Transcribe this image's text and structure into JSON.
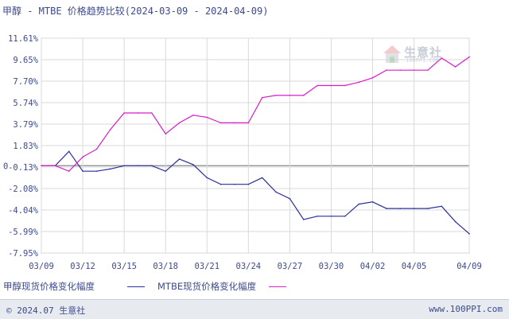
{
  "title": "甲醇 - MTBE 价格趋势比较(2024-03-09 - 2024-04-09)",
  "watermark": {
    "text": "生意社",
    "sub": "100PPI.COM"
  },
  "legend": {
    "series1": "甲醇现货价格变化幅度",
    "series2": "MTBE现货价格变化幅度"
  },
  "footer": {
    "copyright": "© 2024.07 生意社",
    "site": "www.100PPI.com"
  },
  "colors": {
    "series1": "#2b2f9a",
    "series2": "#d81ec9",
    "axis_text": "#3c4a8c",
    "grid": "#d9d9d9"
  },
  "chart_data": {
    "type": "line",
    "title": "甲醇 - MTBE 价格趋势比较(2024-03-09 - 2024-04-09)",
    "x": [
      "03/09",
      "03/10",
      "03/11",
      "03/12",
      "03/13",
      "03/14",
      "03/15",
      "03/16",
      "03/17",
      "03/18",
      "03/19",
      "03/20",
      "03/21",
      "03/22",
      "03/23",
      "03/24",
      "03/25",
      "03/26",
      "03/27",
      "03/28",
      "03/29",
      "03/30",
      "03/31",
      "04/01",
      "04/02",
      "04/03",
      "04/04",
      "04/05",
      "04/06",
      "04/07",
      "04/08",
      "04/09"
    ],
    "x_tick_labels": [
      "03/09",
      "03/12",
      "03/15",
      "03/18",
      "03/21",
      "03/24",
      "03/27",
      "03/30",
      "04/02",
      "04/05",
      "04/09"
    ],
    "y_tick_labels": [
      "11.61%",
      "9.65%",
      "7.70%",
      "5.74%",
      "3.79%",
      "1.83%",
      "-0.13%",
      "-2.08%",
      "-4.04%",
      "-5.99%",
      "-7.95%"
    ],
    "y_tick_values": [
      11.61,
      9.65,
      7.7,
      5.74,
      3.79,
      1.83,
      -0.13,
      -2.08,
      -4.04,
      -5.99,
      -7.95
    ],
    "zero_label": "0",
    "ylim": [
      -7.95,
      11.61
    ],
    "grid": true,
    "series": [
      {
        "name": "甲醇现货价格变化幅度",
        "color": "#2b2f9a",
        "values": [
          0.0,
          0.0,
          1.3,
          -0.5,
          -0.5,
          -0.3,
          0.0,
          0.0,
          0.0,
          -0.5,
          0.6,
          0.1,
          -1.1,
          -1.7,
          -1.7,
          -1.7,
          -1.1,
          -2.4,
          -3.0,
          -4.9,
          -4.6,
          -4.6,
          -4.6,
          -3.5,
          -3.3,
          -3.9,
          -3.9,
          -3.9,
          -3.9,
          -3.7,
          -5.1,
          -6.2
        ]
      },
      {
        "name": "MTBE现货价格变化幅度",
        "color": "#d81ec9",
        "values": [
          0.0,
          0.0,
          -0.5,
          0.8,
          1.5,
          3.3,
          4.8,
          4.8,
          4.8,
          2.9,
          3.9,
          4.6,
          4.4,
          3.9,
          3.9,
          3.9,
          6.2,
          6.4,
          6.4,
          6.4,
          7.3,
          7.3,
          7.3,
          7.6,
          8.0,
          8.7,
          8.7,
          8.7,
          8.7,
          9.8,
          9.0,
          9.9
        ]
      }
    ]
  }
}
